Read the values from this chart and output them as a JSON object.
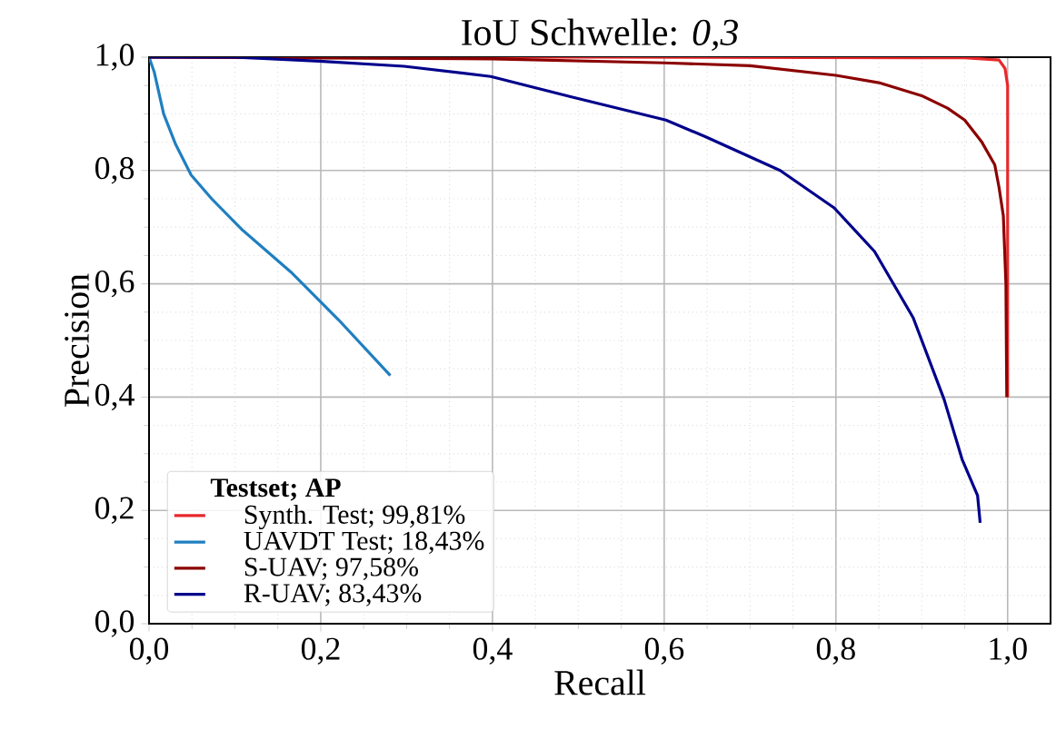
{
  "chart_data": {
    "type": "line",
    "title": "IoU Schwelle: *0,3*",
    "xlabel": "Recall",
    "ylabel": "Precision",
    "legend_title": "**Testset; AP**",
    "xlim": [
      0,
      1.05
    ],
    "ylim": [
      0,
      1.0
    ],
    "xticks": [
      {
        "value": 0,
        "label": "0,0"
      },
      {
        "value": 0.2,
        "label": "0,2"
      },
      {
        "value": 0.4,
        "label": "0,4"
      },
      {
        "value": 0.6,
        "label": "0,6"
      },
      {
        "value": 0.8,
        "label": "0,8"
      },
      {
        "value": 1.0,
        "label": "1,0"
      }
    ],
    "yticks": [
      {
        "value": 0,
        "label": "0,0"
      },
      {
        "value": 0.2,
        "label": "0,2"
      },
      {
        "value": 0.4,
        "label": "0,4"
      },
      {
        "value": 0.6,
        "label": "0,6"
      },
      {
        "value": 0.8,
        "label": "0,8"
      },
      {
        "value": 1.0,
        "label": "1,0"
      }
    ],
    "grid": true,
    "legend": "bottom left",
    "marker": "none",
    "line_style": "solid",
    "series": [
      {
        "name": "Synth. Test; 99,81%",
        "color": "#e8282b",
        "x": [
          0,
          0.5,
          0.95,
          0.99,
          0.997,
          1.0,
          1.0
        ],
        "values": [
          1.0,
          1.0,
          0.999,
          0.995,
          0.98,
          0.95,
          0.4
        ]
      },
      {
        "name": "UAVDT Test; 18,43%",
        "color": "#1f7fc0",
        "x": [
          0,
          0.006,
          0.017,
          0.031,
          0.049,
          0.073,
          0.108,
          0.165,
          0.221,
          0.281
        ],
        "values": [
          1.0,
          0.974,
          0.9,
          0.846,
          0.792,
          0.75,
          0.696,
          0.621,
          0.536,
          0.438
        ]
      },
      {
        "name": "S-UAV; 97,58%",
        "color": "#8b0000",
        "x": [
          0,
          0.4,
          0.6,
          0.7,
          0.8,
          0.85,
          0.9,
          0.93,
          0.95,
          0.97,
          0.985,
          0.99,
          0.995,
          0.998,
          0.999
        ],
        "values": [
          1.0,
          0.997,
          0.99,
          0.985,
          0.968,
          0.955,
          0.932,
          0.91,
          0.889,
          0.85,
          0.81,
          0.77,
          0.72,
          0.6,
          0.4
        ]
      },
      {
        "name": "R-UAV; 83,43%",
        "color": "#00008b",
        "x": [
          0,
          0.1,
          0.198,
          0.297,
          0.398,
          0.492,
          0.602,
          0.649,
          0.735,
          0.798,
          0.845,
          0.89,
          0.926,
          0.947,
          0.965,
          0.968
        ],
        "values": [
          1.0,
          1.0,
          0.993,
          0.984,
          0.966,
          0.93,
          0.889,
          0.859,
          0.8,
          0.734,
          0.657,
          0.54,
          0.396,
          0.29,
          0.226,
          0.178
        ]
      }
    ]
  }
}
